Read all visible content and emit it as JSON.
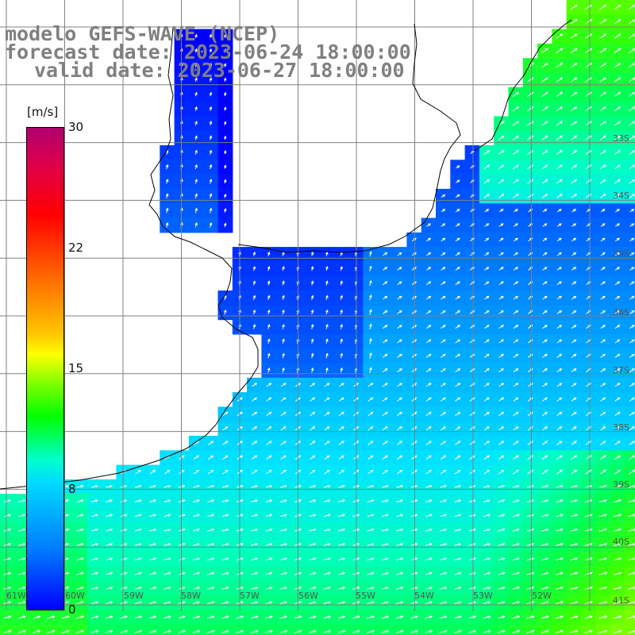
{
  "title": {
    "line1": "modelo GEFS-WAVE (NCEP)",
    "line2": "forecast date: 2023-06-24 18:00:00",
    "line3": "valid date: 2023-06-27 18:00:00"
  },
  "colorbar": {
    "unit": "[m/s]",
    "ticks": [
      {
        "label": "30",
        "value": 30
      },
      {
        "label": "22",
        "value": 22
      },
      {
        "label": "15",
        "value": 15
      },
      {
        "label": "8",
        "value": 8
      },
      {
        "label": "0",
        "value": 0
      }
    ],
    "colors": [
      "#0000ff",
      "#0078ff",
      "#00d8ff",
      "#00ffd0",
      "#00ff00",
      "#80ff00",
      "#ffff00",
      "#ffc800",
      "#ff7000",
      "#ff0000",
      "#e0004a",
      "#b0006e"
    ]
  },
  "lat_labels": [
    "33S",
    "34S",
    "35S",
    "36S",
    "37S",
    "38S",
    "39S",
    "40S",
    "41S"
  ],
  "lon_labels": [
    "61W",
    "60W",
    "59W",
    "58W",
    "57W",
    "56W",
    "55W",
    "54W",
    "53W",
    "52W"
  ],
  "wind_direction": "northeast"
}
